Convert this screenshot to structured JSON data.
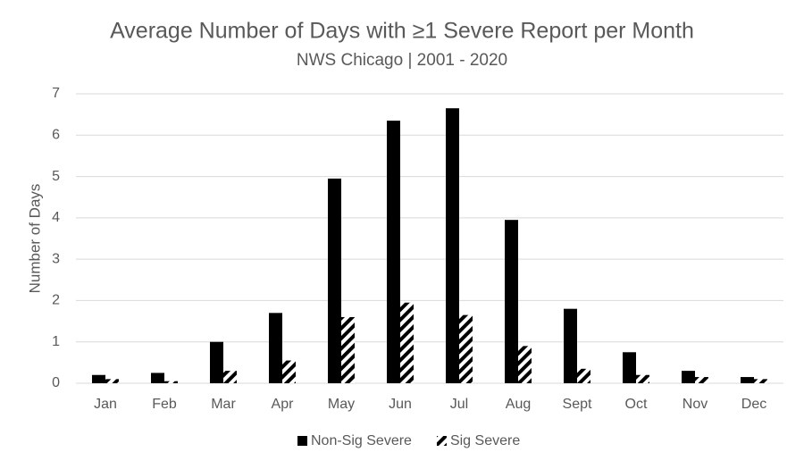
{
  "chart_data": {
    "type": "bar",
    "title": "Average Number of Days with ≥1 Severe Report per Month",
    "subtitle": "NWS Chicago | 2001 - 2020",
    "y_label": "Number of Days",
    "categories": [
      "Jan",
      "Feb",
      "Mar",
      "Apr",
      "May",
      "Jun",
      "Jul",
      "Aug",
      "Sept",
      "Oct",
      "Nov",
      "Dec"
    ],
    "series": [
      {
        "name": "Non-Sig Severe",
        "color": "#000000",
        "values": [
          0.2,
          0.25,
          1.0,
          1.7,
          4.95,
          6.35,
          6.65,
          3.95,
          1.8,
          0.75,
          0.3,
          0.15
        ]
      },
      {
        "name": "Sig Severe",
        "color": "#000000",
        "pattern": "diagonal-hatch",
        "values": [
          0.1,
          0.05,
          0.3,
          0.55,
          1.6,
          1.95,
          1.65,
          0.9,
          0.35,
          0.2,
          0.15,
          0.1
        ]
      }
    ],
    "ylim": [
      0,
      7
    ],
    "yticks": [
      0,
      1,
      2,
      3,
      4,
      5,
      6,
      7
    ],
    "grid": true,
    "legend": "bottom"
  }
}
